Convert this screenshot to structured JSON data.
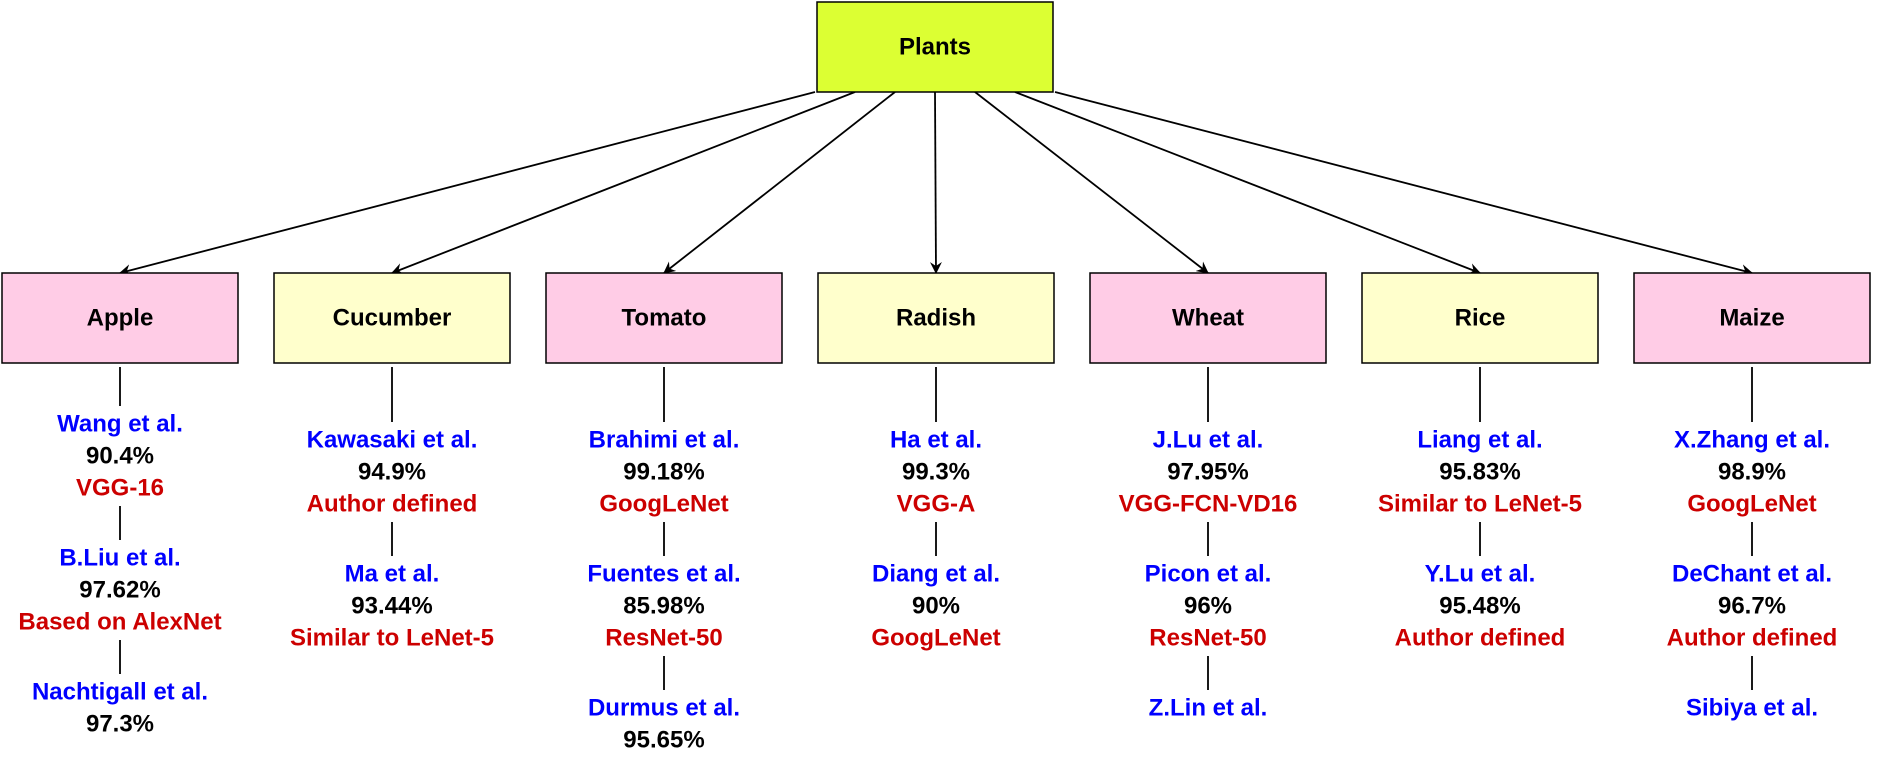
{
  "colors": {
    "root_fill": "#dcff33",
    "pink_fill": "#ffcce6",
    "yellow_fill": "#ffffcc",
    "author_text": "#0000ff",
    "model_text": "#cc0000"
  },
  "root": {
    "label": "Plants"
  },
  "plants": [
    {
      "label": "Apple",
      "fill": "pink",
      "studies": [
        {
          "author": "Wang et al.",
          "accuracy": "90.4%",
          "model": "VGG-16"
        },
        {
          "author": "B.Liu et al.",
          "accuracy": "97.62%",
          "model": "Based on AlexNet"
        },
        {
          "author": "Nachtigall et al.",
          "accuracy": "97.3%",
          "model": ""
        }
      ]
    },
    {
      "label": "Cucumber",
      "fill": "yellow",
      "studies": [
        {
          "author": "Kawasaki et al.",
          "accuracy": "94.9%",
          "model": "Author defined"
        },
        {
          "author": "Ma et al.",
          "accuracy": "93.44%",
          "model": "Similar to LeNet-5"
        }
      ]
    },
    {
      "label": "Tomato",
      "fill": "pink",
      "studies": [
        {
          "author": "Brahimi et al.",
          "accuracy": "99.18%",
          "model": "GoogLeNet"
        },
        {
          "author": "Fuentes et al.",
          "accuracy": "85.98%",
          "model": "ResNet-50"
        },
        {
          "author": "Durmus et al.",
          "accuracy": "95.65%",
          "model": ""
        }
      ]
    },
    {
      "label": "Radish",
      "fill": "yellow",
      "studies": [
        {
          "author": "Ha et al.",
          "accuracy": "99.3%",
          "model": "VGG-A"
        },
        {
          "author": "Diang et al.",
          "accuracy": "90%",
          "model": "GoogLeNet"
        }
      ]
    },
    {
      "label": "Wheat",
      "fill": "pink",
      "studies": [
        {
          "author": "J.Lu et al.",
          "accuracy": "97.95%",
          "model": "VGG-FCN-VD16"
        },
        {
          "author": "Picon et al.",
          "accuracy": "96%",
          "model": "ResNet-50"
        },
        {
          "author": "Z.Lin et al.",
          "accuracy": "",
          "model": ""
        }
      ]
    },
    {
      "label": "Rice",
      "fill": "yellow",
      "studies": [
        {
          "author": "Liang et al.",
          "accuracy": "95.83%",
          "model": "Similar to LeNet-5"
        },
        {
          "author": "Y.Lu et al.",
          "accuracy": "95.48%",
          "model": "Author defined"
        }
      ]
    },
    {
      "label": "Maize",
      "fill": "pink",
      "studies": [
        {
          "author": "X.Zhang et al.",
          "accuracy": "98.9%",
          "model": "GoogLeNet"
        },
        {
          "author": "DeChant et al.",
          "accuracy": "96.7%",
          "model": "Author defined"
        },
        {
          "author": "Sibiya et al.",
          "accuracy": "",
          "model": ""
        }
      ]
    }
  ]
}
